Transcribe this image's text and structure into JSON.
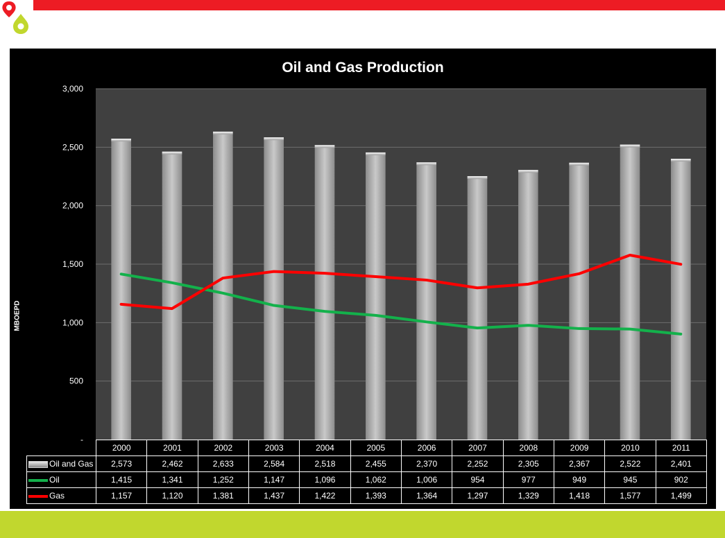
{
  "colors": {
    "brand_red": "#ed1c24",
    "brand_green": "#c1d72e",
    "bar": "#b3b3b3",
    "oil": "#13b14b",
    "gas": "#ff0000",
    "plot_bg": "#404040"
  },
  "chart_data": {
    "type": "bar",
    "title": "Oil and Gas Production",
    "xlabel": "",
    "ylabel": "MBOEPD",
    "ylim": [
      0,
      3000
    ],
    "yticks": [
      0,
      500,
      1000,
      1500,
      2000,
      2500,
      3000
    ],
    "ytick_labels": [
      "-",
      "500",
      "1,000",
      "1,500",
      "2,000",
      "2,500",
      "3,000"
    ],
    "grid": true,
    "legend": "data-table",
    "categories": [
      "2000",
      "2001",
      "2002",
      "2003",
      "2004",
      "2005",
      "2006",
      "2007",
      "2008",
      "2009",
      "2010",
      "2011"
    ],
    "series": [
      {
        "name": "Oil and Gas",
        "type": "bar",
        "color": "#b3b3b3",
        "values": [
          2573,
          2462,
          2633,
          2584,
          2518,
          2455,
          2370,
          2252,
          2305,
          2367,
          2522,
          2401
        ],
        "labels": [
          "2,573",
          "2,462",
          "2,633",
          "2,584",
          "2,518",
          "2,455",
          "2,370",
          "2,252",
          "2,305",
          "2,367",
          "2,522",
          "2,401"
        ]
      },
      {
        "name": "Oil",
        "type": "line",
        "color": "#13b14b",
        "values": [
          1415,
          1341,
          1252,
          1147,
          1096,
          1062,
          1006,
          954,
          977,
          949,
          945,
          902
        ],
        "labels": [
          "1,415",
          "1,341",
          "1,252",
          "1,147",
          "1,096",
          "1,062",
          "1,006",
          "954",
          "977",
          "949",
          "945",
          "902"
        ]
      },
      {
        "name": "Gas",
        "type": "line",
        "color": "#ff0000",
        "values": [
          1157,
          1120,
          1381,
          1437,
          1422,
          1393,
          1364,
          1297,
          1329,
          1418,
          1577,
          1499
        ],
        "labels": [
          "1,157",
          "1,120",
          "1,381",
          "1,437",
          "1,422",
          "1,393",
          "1,364",
          "1,297",
          "1,329",
          "1,418",
          "1,577",
          "1,499"
        ]
      }
    ]
  }
}
